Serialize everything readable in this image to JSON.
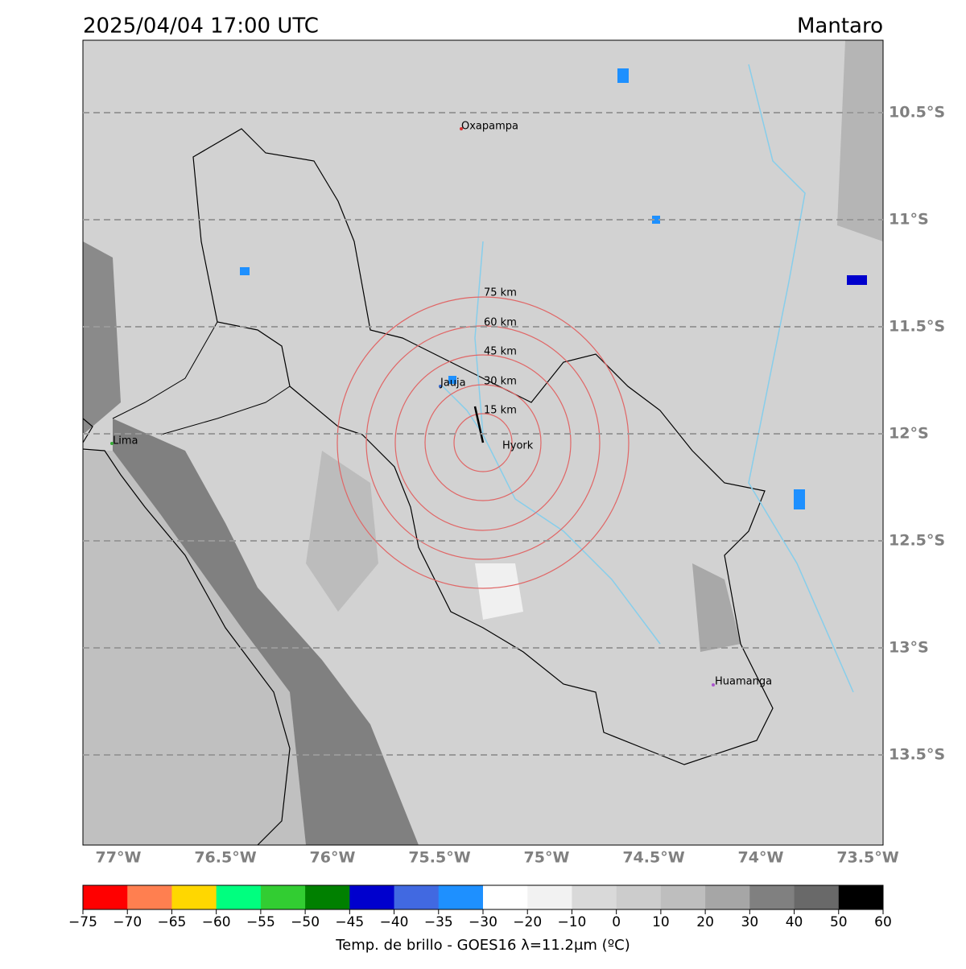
{
  "header": {
    "title": "2025/04/04 17:00 UTC",
    "region": "Mantaro"
  },
  "map": {
    "lat_ticks": [
      {
        "value": -10.5,
        "label": "10.5°S"
      },
      {
        "value": -11,
        "label": "11°S"
      },
      {
        "value": -11.5,
        "label": "11.5°S"
      },
      {
        "value": -12,
        "label": "12°S"
      },
      {
        "value": -12.5,
        "label": "12.5°S"
      },
      {
        "value": -13,
        "label": "13°S"
      },
      {
        "value": -13.5,
        "label": "13.5°S"
      }
    ],
    "lon_ticks": [
      {
        "value": -77,
        "label": "77°W"
      },
      {
        "value": -76.5,
        "label": "76.5°W"
      },
      {
        "value": -76,
        "label": "76°W"
      },
      {
        "value": -75.5,
        "label": "75.5°W"
      },
      {
        "value": -75,
        "label": "75°W"
      },
      {
        "value": -74.5,
        "label": "74.5°W"
      },
      {
        "value": -74,
        "label": "74°W"
      },
      {
        "value": -73.5,
        "label": "73.5°W"
      }
    ],
    "cities": [
      "Oxapampa",
      "Jauja",
      "Hyork",
      "Lima",
      "Huamanga"
    ],
    "rings": [
      "15 km",
      "30 km",
      "45 km",
      "60 km",
      "75 km"
    ]
  },
  "colorbar": {
    "label": "Temp. de brillo - GOES16 λ=11.2μm (ºC)",
    "ticks": [
      {
        "value": -75,
        "label": "−75"
      },
      {
        "value": -70,
        "label": "−70"
      },
      {
        "value": -65,
        "label": "−65"
      },
      {
        "value": -60,
        "label": "−60"
      },
      {
        "value": -55,
        "label": "−55"
      },
      {
        "value": -50,
        "label": "−50"
      },
      {
        "value": -45,
        "label": "−45"
      },
      {
        "value": -40,
        "label": "−40"
      },
      {
        "value": -35,
        "label": "−35"
      },
      {
        "value": -30,
        "label": "−30"
      },
      {
        "value": -20,
        "label": "−20"
      },
      {
        "value": -10,
        "label": "−10"
      },
      0,
      10,
      20,
      30,
      40,
      50,
      60
    ],
    "colors": [
      "#ff0000",
      "#ff7f50",
      "#ffd700",
      "#00ff7f",
      "#32cd32",
      "#008000",
      "#0000cd",
      "#4169e1",
      "#1e90ff",
      "#ffffff",
      "#f2f2f2",
      "#d9d9d9",
      "#cccccc",
      "#bebebe",
      "#a6a6a6",
      "#808080",
      "#696969",
      "#000000"
    ]
  }
}
